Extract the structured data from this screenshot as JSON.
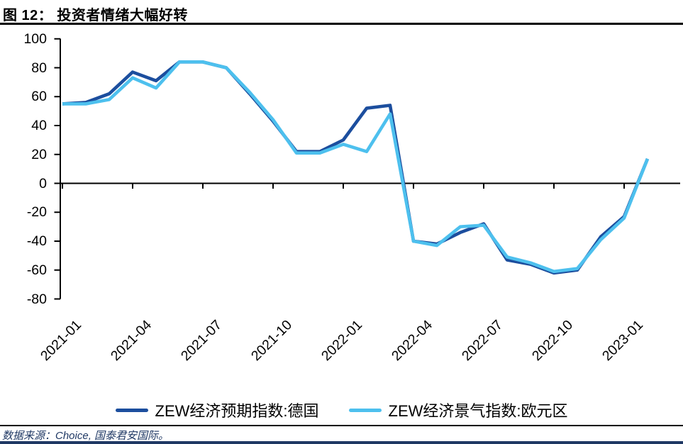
{
  "title": "图 12： 投资者情绪大幅好转",
  "source_note": "数据来源：Choice, 国泰君安国际。",
  "colors": {
    "series_germany": "#1C4E9E",
    "series_eurozone": "#4DC0EE",
    "axis": "#000000",
    "source_text": "#1F3864",
    "bottom_bar": "#1F3864"
  },
  "chart_data": {
    "type": "line",
    "x": [
      "2021-01",
      "2021-02",
      "2021-03",
      "2021-04",
      "2021-05",
      "2021-06",
      "2021-07",
      "2021-08",
      "2021-09",
      "2021-10",
      "2021-11",
      "2021-12",
      "2022-01",
      "2022-02",
      "2022-03",
      "2022-04",
      "2022-05",
      "2022-06",
      "2022-07",
      "2022-08",
      "2022-09",
      "2022-10",
      "2022-11",
      "2022-12",
      "2023-01",
      "2023-02"
    ],
    "x_tick_labels": [
      "2021-01",
      "2021-04",
      "2021-07",
      "2021-10",
      "2022-01",
      "2022-04",
      "2022-07",
      "2022-10",
      "2023-01"
    ],
    "x_tick_every": 3,
    "y_tick_labels": [
      "100",
      "80",
      "60",
      "40",
      "20",
      "0",
      "-20",
      "-40",
      "-60",
      "-80"
    ],
    "y_ticks": [
      100,
      80,
      60,
      40,
      20,
      0,
      -20,
      -40,
      -60,
      -80
    ],
    "ylim": [
      -80,
      100
    ],
    "grid": false,
    "legend_position": "bottom",
    "series": [
      {
        "name": "ZEW经济预期指数:德国",
        "color": "#1C4E9E",
        "values": [
          55,
          56,
          62,
          77,
          71,
          84,
          84,
          80,
          62,
          43,
          22,
          22,
          30,
          52,
          54,
          -40,
          -42,
          -34,
          -28,
          -53,
          -56,
          -62,
          -60,
          -37,
          -23,
          17
        ]
      },
      {
        "name": "ZEW经济景气指数:欧元区",
        "color": "#4DC0EE",
        "values": [
          55,
          55,
          58,
          73,
          66,
          84,
          84,
          80,
          63,
          44,
          21,
          21,
          27,
          22,
          48,
          -40,
          -43,
          -30,
          -29,
          -51,
          -55,
          -61,
          -59,
          -39,
          -24,
          17
        ]
      }
    ]
  }
}
